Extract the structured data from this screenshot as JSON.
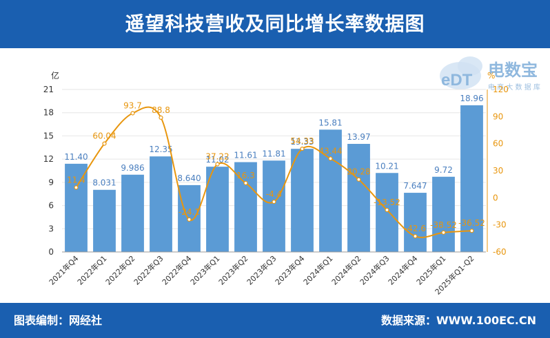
{
  "header": {
    "title": "遥望科技营收及同比增长率数据图"
  },
  "footer": {
    "left": "图表编制：网经社",
    "right": "数据来源：WWW.100EC.CN"
  },
  "watermark": {
    "brand": "电数宝",
    "logo_text": "eDT",
    "sub": "电 商 大 数 据 库"
  },
  "chart_data": {
    "type": "bar",
    "categories": [
      "2021年Q4",
      "2022年Q1",
      "2022年Q2",
      "2022年Q3",
      "2022年Q4",
      "2023年Q1",
      "2023年Q2",
      "2023年Q3",
      "2023年Q4",
      "2024年Q1",
      "2024年Q2",
      "2024年Q3",
      "2024年Q4",
      "2025年Q1",
      "2025年Q1-Q2"
    ],
    "series": [
      {
        "kind": "bar",
        "axis": "left",
        "values": [
          11.4,
          8.031,
          9.986,
          12.35,
          8.64,
          11.02,
          11.61,
          11.81,
          13.33,
          15.81,
          13.97,
          10.21,
          7.647,
          9.72,
          18.96
        ],
        "labels": [
          "11.40",
          "8.031",
          "9.986",
          "12.35",
          "8.640",
          "11.02",
          "11.61",
          "11.81",
          "13.33",
          "15.81",
          "13.97",
          "10.21",
          "7.647",
          "9.72",
          "18.96"
        ],
        "color": "#5b9bd5"
      },
      {
        "kind": "line",
        "axis": "right",
        "values": [
          11.4,
          60.04,
          93.7,
          88.8,
          -24.1,
          37.22,
          16.3,
          -4.4,
          54.33,
          43.44,
          20.28,
          -13.52,
          -42.6,
          -38.52,
          -36.52
        ],
        "labels": [
          "11.4",
          "60.04",
          "93.7",
          "88.8",
          "-24.1",
          "37.22",
          "16.3",
          "-4.4",
          "54.33",
          "43.44",
          "20.28",
          "-13.52",
          "-42.6",
          "-38.52",
          "-36.52"
        ],
        "color": "#e8960e"
      }
    ],
    "y_left": {
      "unit": "亿",
      "range": [
        0,
        21
      ],
      "ticks": [
        "0",
        "3",
        "6",
        "9",
        "12",
        "15",
        "18",
        "21"
      ]
    },
    "y_right": {
      "unit": "%",
      "range": [
        -60,
        120
      ],
      "ticks": [
        "-60",
        "-30",
        "0",
        "30",
        "60",
        "90",
        "120"
      ]
    },
    "grid": true
  }
}
